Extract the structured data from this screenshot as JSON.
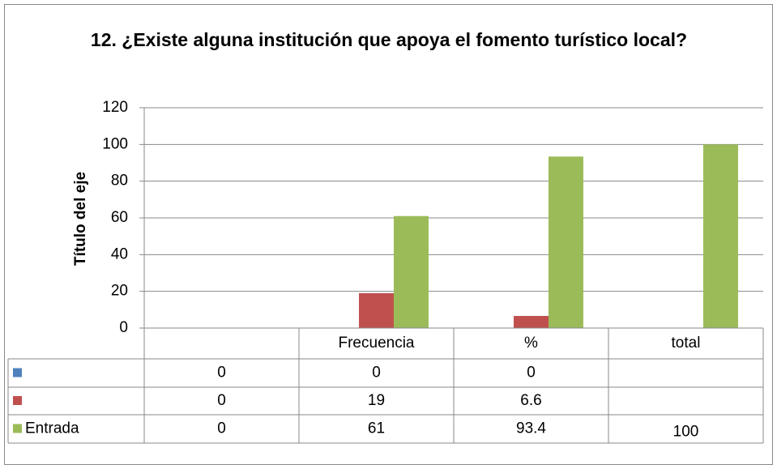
{
  "chart_data": {
    "type": "bar",
    "title": "12. ¿Existe alguna institución que apoya el fomento turístico local?",
    "y_label": "Título del eje",
    "categories": [
      null,
      "Frecuencia",
      "%",
      "total"
    ],
    "series": [
      {
        "color": "#4f81bd",
        "values": [
          0,
          0,
          0,
          null
        ]
      },
      {
        "color": "#c0504d",
        "values": [
          0,
          19,
          6.6,
          null
        ]
      },
      {
        "name": "Entrada",
        "color": "#9bbb59",
        "values": [
          0,
          61,
          93.4,
          100
        ]
      }
    ],
    "ylim": [
      0,
      120
    ],
    "yticks": [
      0,
      20,
      40,
      60,
      80,
      100,
      120
    ],
    "grid": true,
    "data_table": true
  }
}
